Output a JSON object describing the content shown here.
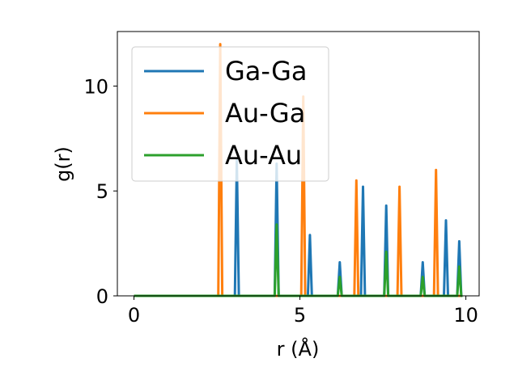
{
  "chart_data": {
    "type": "line",
    "xlabel": "r (Å)",
    "ylabel": "g(r)",
    "xlim": [
      -0.5,
      10.4
    ],
    "ylim": [
      0,
      12.6
    ],
    "x_ticks": [
      0,
      5,
      10
    ],
    "y_ticks": [
      0,
      5,
      10
    ],
    "grid": false,
    "legend_position": "top-left",
    "peak_half_width": 0.06,
    "series": [
      {
        "name": "Ga-Ga",
        "color": "#1f77b4",
        "peaks": [
          [
            3.1,
            6.5
          ],
          [
            4.3,
            6.3
          ],
          [
            5.3,
            2.9
          ],
          [
            6.2,
            1.6
          ],
          [
            6.9,
            5.2
          ],
          [
            7.6,
            4.3
          ],
          [
            8.7,
            1.6
          ],
          [
            9.4,
            3.6
          ],
          [
            9.8,
            2.6
          ]
        ]
      },
      {
        "name": "Au-Ga",
        "color": "#ff7f0e",
        "peaks": [
          [
            2.6,
            12.0
          ],
          [
            5.1,
            9.5
          ],
          [
            6.7,
            5.5
          ],
          [
            8.0,
            5.2
          ],
          [
            9.1,
            6.0
          ]
        ]
      },
      {
        "name": "Au-Au",
        "color": "#2ca02c",
        "peaks": [
          [
            4.3,
            3.4
          ],
          [
            6.2,
            0.9
          ],
          [
            7.6,
            2.1
          ],
          [
            8.7,
            0.9
          ],
          [
            9.8,
            1.4
          ]
        ]
      }
    ]
  }
}
